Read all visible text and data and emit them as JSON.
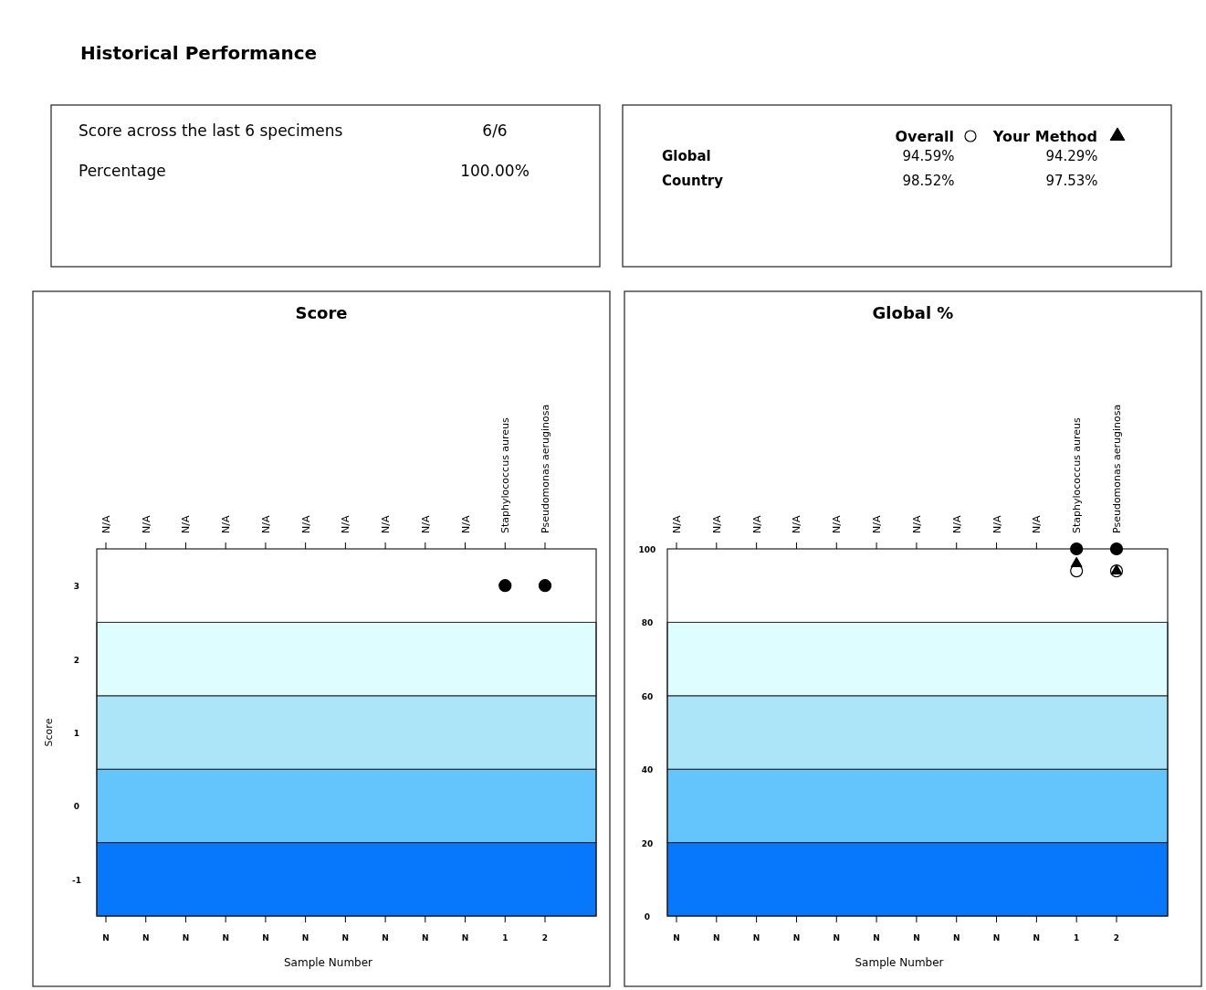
{
  "chart_data": [
    {
      "type": "other",
      "title": "Historical Performance",
      "annotations": [
        "Score across the last 6 specimens",
        "6/6",
        "Percentage",
        "100.00%"
      ]
    },
    {
      "type": "other",
      "annotations": [
        "Overall",
        "Your Method",
        "Global",
        "94.59%",
        "94.29%",
        "Country",
        "98.52%",
        "97.53%"
      ]
    },
    {
      "type": "scatter",
      "title": "Score",
      "xlabel": "Sample Number",
      "ylabel": "Score",
      "categories": [
        "N",
        "N",
        "N",
        "N",
        "N",
        "N",
        "N",
        "N",
        "N",
        "N",
        "1",
        "2"
      ],
      "annotations": [
        "N/A",
        "N/A",
        "N/A",
        "N/A",
        "N/A",
        "N/A",
        "N/A",
        "N/A",
        "N/A",
        "N/A",
        "Staphylococcus aureus",
        "Pseudomonas aeruginosa"
      ],
      "ylim": [
        -1.5,
        3.5
      ],
      "yticks": [
        -1,
        0,
        1,
        2,
        3
      ],
      "bands": [
        {
          "axis": "y",
          "from": -1.5,
          "to": -0.5,
          "color": "#0777fb"
        },
        {
          "axis": "y",
          "from": -0.5,
          "to": 0.5,
          "color": "#63c5fc"
        },
        {
          "axis": "y",
          "from": 0.5,
          "to": 1.5,
          "color": "#ade5f8"
        },
        {
          "axis": "y",
          "from": 1.5,
          "to": 2.5,
          "color": "#ddfdff"
        }
      ],
      "series": [
        {
          "color": "#000000",
          "marker": "circle",
          "values": [
            null,
            null,
            null,
            null,
            null,
            null,
            null,
            null,
            null,
            null,
            3,
            3
          ]
        }
      ]
    },
    {
      "type": "scatter",
      "title": "Global %",
      "xlabel": "Sample Number",
      "categories": [
        "N",
        "N",
        "N",
        "N",
        "N",
        "N",
        "N",
        "N",
        "N",
        "N",
        "1",
        "2"
      ],
      "annotations": [
        "N/A",
        "N/A",
        "N/A",
        "N/A",
        "N/A",
        "N/A",
        "N/A",
        "N/A",
        "N/A",
        "N/A",
        "Staphylococcus aureus",
        "Pseudomonas aeruginosa"
      ],
      "ylim": [
        0,
        100
      ],
      "yticks": [
        0,
        20,
        40,
        60,
        80,
        100
      ],
      "bands": [
        {
          "axis": "y",
          "from": 0,
          "to": 20,
          "color": "#0777fb"
        },
        {
          "axis": "y",
          "from": 20,
          "to": 40,
          "color": "#63c5fc"
        },
        {
          "axis": "y",
          "from": 40,
          "to": 60,
          "color": "#ade5f8"
        },
        {
          "axis": "y",
          "from": 60,
          "to": 80,
          "color": "#ddfdff"
        }
      ],
      "series": [
        {
          "color": "#000000",
          "marker": "circle",
          "values": [
            null,
            null,
            null,
            null,
            null,
            null,
            null,
            null,
            null,
            null,
            100,
            100
          ]
        },
        {
          "color": "#ffffff",
          "marker": "circle",
          "values": [
            null,
            null,
            null,
            null,
            null,
            null,
            null,
            null,
            null,
            null,
            94,
            94
          ]
        },
        {
          "color": "#000000",
          "marker": "triangle",
          "values": [
            null,
            null,
            null,
            null,
            null,
            null,
            null,
            null,
            null,
            null,
            96,
            94
          ]
        }
      ]
    }
  ]
}
